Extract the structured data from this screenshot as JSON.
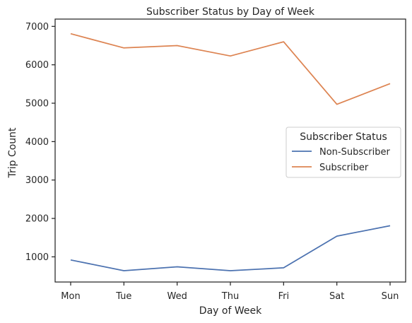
{
  "chart_data": {
    "type": "line",
    "title": "Subscriber Status by Day of Week",
    "xlabel": "Day of Week",
    "ylabel": "Trip Count",
    "categories": [
      "Mon",
      "Tue",
      "Wed",
      "Thu",
      "Fri",
      "Sat",
      "Sun"
    ],
    "series": [
      {
        "name": "Non-Subscriber",
        "color": "#4c72b0",
        "values": [
          920,
          640,
          740,
          640,
          715,
          1540,
          1810
        ]
      },
      {
        "name": "Subscriber",
        "color": "#dd8452",
        "values": [
          6810,
          6440,
          6500,
          6230,
          6600,
          4970,
          5510
        ]
      }
    ],
    "ylim": [
      345,
      7190
    ],
    "yticks": [
      1000,
      2000,
      3000,
      4000,
      5000,
      6000,
      7000
    ],
    "ytick_labels": [
      "1000",
      "2000",
      "3000",
      "4000",
      "5000",
      "6000",
      "7000"
    ],
    "grid": false,
    "legend": {
      "title": "Subscriber Status",
      "placement": "center-right"
    }
  }
}
